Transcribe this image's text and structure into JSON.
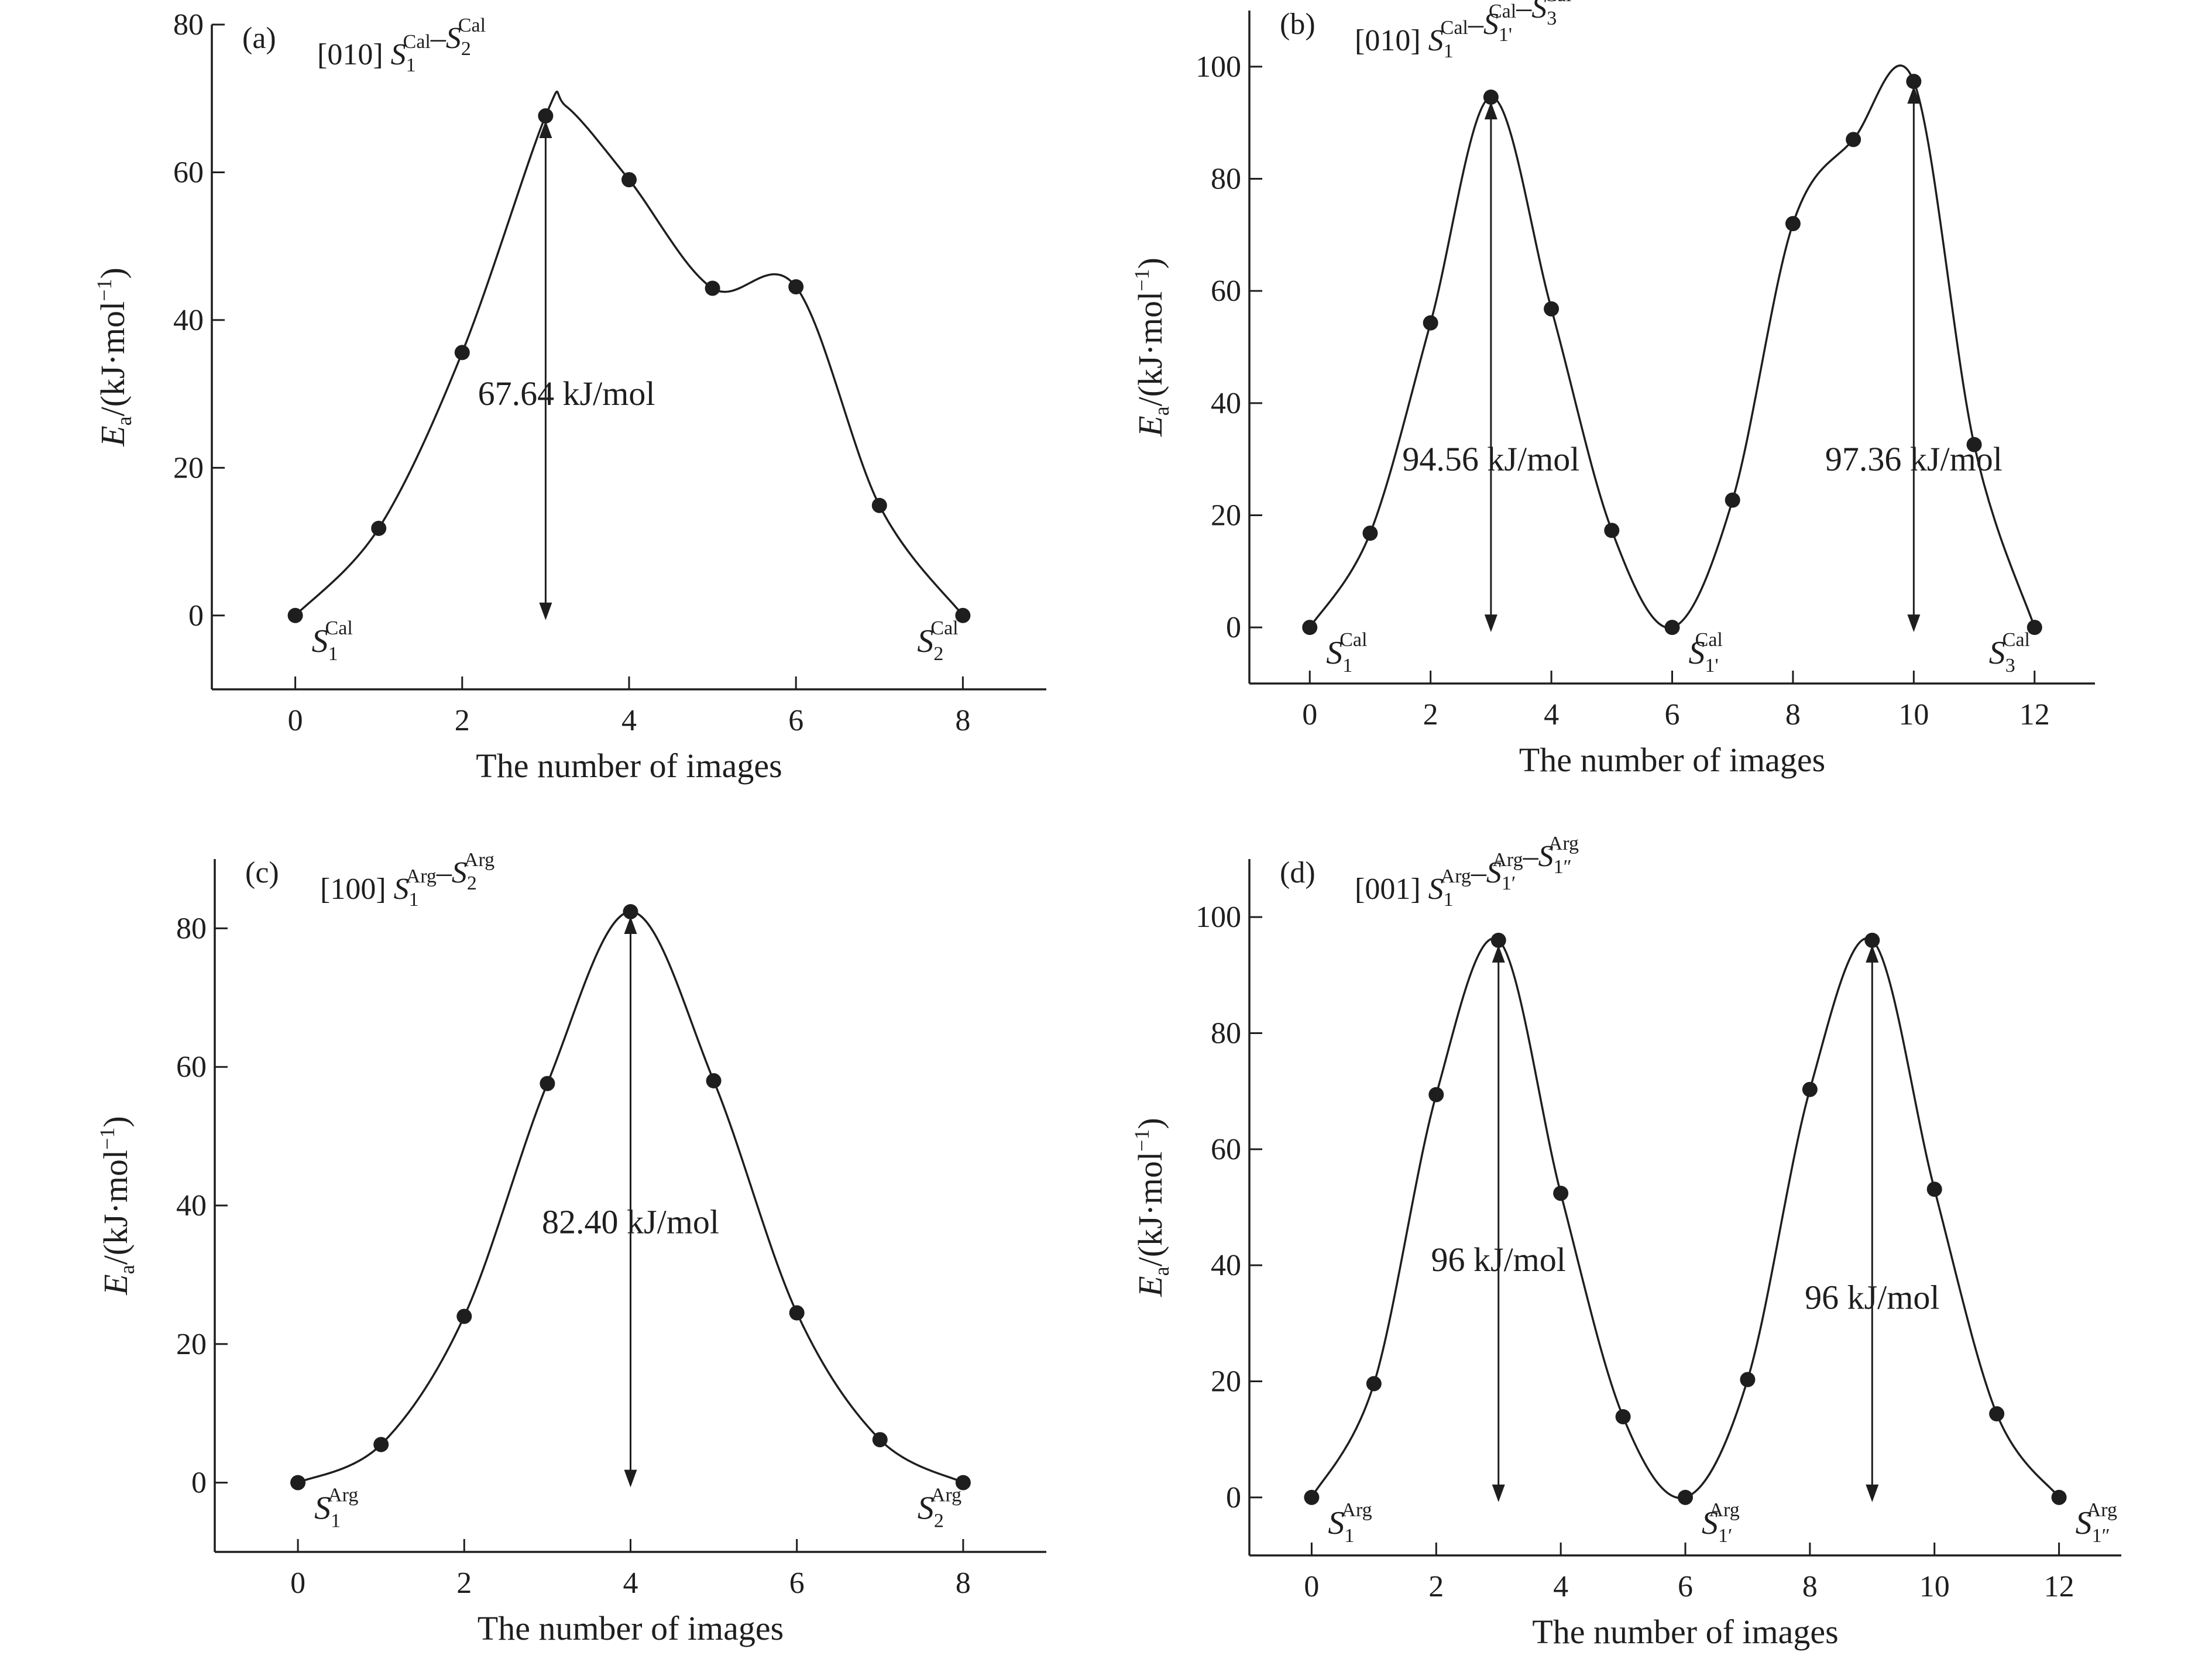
{
  "figure": {
    "background": "#ffffff",
    "ink_color": "#1e1e1e"
  },
  "chart_data": [
    {
      "id": "a",
      "type": "line",
      "panel_label": "(a)",
      "title": {
        "direction": "[010]",
        "path": [
          {
            "s": "S",
            "sub": "1",
            "sup": "Cal"
          },
          {
            "sep": "–"
          },
          {
            "s": "S",
            "sub": "2",
            "sup": "Cal"
          }
        ]
      },
      "xlabel": "The number of images",
      "ylabel": {
        "main": "E",
        "sub": "a",
        "rest": "/(kJ·mol",
        "sup": "−1",
        "close": ")"
      },
      "xlim": [
        -1,
        9
      ],
      "ylim": [
        -10,
        80
      ],
      "xticks": [
        0,
        2,
        4,
        6,
        8
      ],
      "yticks": [
        0,
        20,
        40,
        60,
        80
      ],
      "x": [
        0,
        1,
        2,
        3,
        4,
        5,
        6,
        7,
        8
      ],
      "y": [
        0,
        11.8,
        35.6,
        67.64,
        59.0,
        44.3,
        44.5,
        14.9,
        0
      ],
      "curve_peaks": [
        {
          "x": 3.25,
          "y": 68.9
        }
      ],
      "barriers": [
        {
          "x": 3,
          "top": 67.64,
          "label": "67.64 kJ/mol",
          "label_x": 3.25,
          "label_y": 28.5
        }
      ],
      "state_labels": [
        {
          "x": 0,
          "s": "S",
          "sub": "1",
          "sup": "Cal",
          "side": "right"
        },
        {
          "x": 8,
          "s": "S",
          "sub": "2",
          "sup": "Cal",
          "side": "left"
        }
      ]
    },
    {
      "id": "b",
      "type": "line",
      "panel_label": "(b)",
      "title": {
        "direction": "[010]",
        "path": [
          {
            "s": "S",
            "sub": "1",
            "sup": "Cal"
          },
          {
            "sep": "–"
          },
          {
            "s": "S",
            "sub": "1'",
            "sup": "Cal"
          },
          {
            "sep": "–"
          },
          {
            "s": "S",
            "sub": "3",
            "sup": "Cal"
          }
        ]
      },
      "xlabel": "The number of images",
      "ylabel": {
        "main": "E",
        "sub": "a",
        "rest": "/(kJ·mol",
        "sup": "−1",
        "close": ")"
      },
      "xlim": [
        -1,
        13
      ],
      "ylim": [
        -10,
        110
      ],
      "xticks": [
        0,
        2,
        4,
        6,
        8,
        10,
        12
      ],
      "yticks": [
        0,
        20,
        40,
        60,
        80,
        100
      ],
      "x": [
        0,
        1,
        2,
        3,
        4,
        5,
        6,
        7,
        8,
        9,
        10,
        11,
        12
      ],
      "y": [
        0,
        16.8,
        54.3,
        94.56,
        56.8,
        17.3,
        0,
        22.7,
        72.0,
        87.0,
        97.36,
        32.6,
        0
      ],
      "curve_peaks": [],
      "barriers": [
        {
          "x": 3,
          "top": 94.56,
          "label": "94.56 kJ/mol",
          "label_x": 3.0,
          "label_y": 28.0
        },
        {
          "x": 10,
          "top": 97.36,
          "label": "97.36 kJ/mol",
          "label_x": 10.0,
          "label_y": 28.0
        }
      ],
      "state_labels": [
        {
          "x": 0,
          "s": "S",
          "sub": "1",
          "sup": "Cal",
          "side": "right"
        },
        {
          "x": 6,
          "s": "S",
          "sub": "1'",
          "sup": "Cal",
          "side": "right"
        },
        {
          "x": 12,
          "s": "S",
          "sub": "3",
          "sup": "Cal",
          "side": "left"
        }
      ]
    },
    {
      "id": "c",
      "type": "line",
      "panel_label": "(c)",
      "title": {
        "direction": "[100]",
        "path": [
          {
            "s": "S",
            "sub": "1",
            "sup": "Arg"
          },
          {
            "sep": "–"
          },
          {
            "s": "S",
            "sub": "2",
            "sup": "Arg"
          }
        ]
      },
      "xlabel": "The number of images",
      "ylabel": {
        "main": "E",
        "sub": "a",
        "rest": "/(kJ·mol",
        "sup": "−1",
        "close": ")"
      },
      "xlim": [
        -1,
        9
      ],
      "ylim": [
        -10,
        90
      ],
      "xticks": [
        0,
        2,
        4,
        6,
        8
      ],
      "yticks": [
        0,
        20,
        40,
        60,
        80
      ],
      "x": [
        0,
        1,
        2,
        3,
        4,
        5,
        6,
        7,
        8
      ],
      "y": [
        0,
        5.5,
        24.0,
        57.6,
        82.4,
        58.0,
        24.5,
        6.2,
        0
      ],
      "curve_peaks": [],
      "barriers": [
        {
          "x": 4,
          "top": 82.4,
          "label": "82.40 kJ/mol",
          "label_x": 4.0,
          "label_y": 36.0
        }
      ],
      "state_labels": [
        {
          "x": 0,
          "s": "S",
          "sub": "1",
          "sup": "Arg",
          "side": "right"
        },
        {
          "x": 8,
          "s": "S",
          "sub": "2",
          "sup": "Arg",
          "side": "left"
        }
      ]
    },
    {
      "id": "d",
      "type": "line",
      "panel_label": "(d)",
      "title": {
        "direction": "[001]",
        "path": [
          {
            "s": "S",
            "sub": "1",
            "sup": "Arg"
          },
          {
            "sep": "–"
          },
          {
            "s": "S",
            "sub": "1′",
            "sup": "Arg"
          },
          {
            "sep": "–"
          },
          {
            "s": "S",
            "sub": "1″",
            "sup": "Arg"
          }
        ]
      },
      "xlabel": "The number of images",
      "ylabel": {
        "main": "E",
        "sub": "a",
        "rest": "/(kJ·mol",
        "sup": "−1",
        "close": ")"
      },
      "xlim": [
        -1,
        13
      ],
      "ylim": [
        -10,
        110
      ],
      "xticks": [
        0,
        2,
        4,
        6,
        8,
        10,
        12
      ],
      "yticks": [
        0,
        20,
        40,
        60,
        80,
        100
      ],
      "x": [
        0,
        1,
        2,
        3,
        4,
        5,
        6,
        7,
        8,
        9,
        10,
        11,
        12
      ],
      "y": [
        0,
        19.6,
        69.4,
        96,
        52.4,
        13.9,
        0,
        20.3,
        70.3,
        96,
        53.1,
        14.4,
        0
      ],
      "curve_peaks": [],
      "barriers": [
        {
          "x": 3,
          "top": 96,
          "label": "96 kJ/mol",
          "label_x": 3.0,
          "label_y": 39.0
        },
        {
          "x": 9,
          "top": 96,
          "label": "96 kJ/mol",
          "label_x": 9.0,
          "label_y": 32.5
        }
      ],
      "state_labels": [
        {
          "x": 0,
          "s": "S",
          "sub": "1",
          "sup": "Arg",
          "side": "right"
        },
        {
          "x": 6,
          "s": "S",
          "sub": "1′",
          "sup": "Arg",
          "side": "right"
        },
        {
          "x": 12,
          "s": "S",
          "sub": "1″",
          "sup": "Arg",
          "side": "right"
        }
      ]
    }
  ]
}
